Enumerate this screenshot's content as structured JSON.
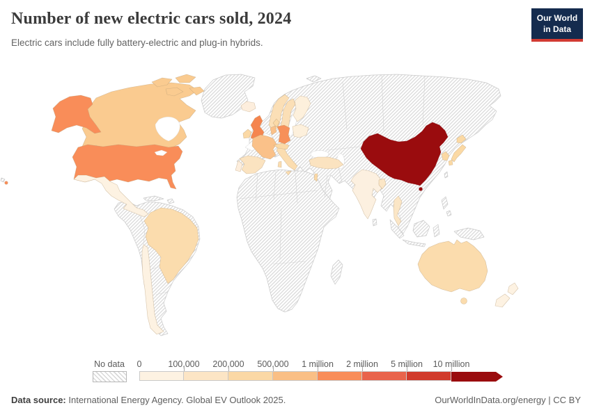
{
  "header": {
    "title": "Number of new electric cars sold, 2024",
    "subtitle": "Electric cars include fully battery-electric and plug-in hybrids.",
    "logo": {
      "line1": "Our World",
      "line2": "in Data",
      "bg": "#142b4e",
      "accent": "#d23b33"
    }
  },
  "legend": {
    "no_data_label": "No data",
    "tick_labels": [
      "0",
      "100,000",
      "200,000",
      "500,000",
      "1 million",
      "2 million",
      "5 million",
      "10 million"
    ],
    "bin_colors": [
      "#fdf2e2",
      "#fce5c5",
      "#fbd8a5",
      "#fabf85",
      "#f98d59",
      "#e9634b",
      "#d13a2b",
      "#9a0c0e"
    ]
  },
  "footer": {
    "source_label": "Data source:",
    "source_text": "International Energy Agency. Global EV Outlook 2025.",
    "rights": "OurWorldInData.org/energy | CC BY"
  },
  "map": {
    "no_data_pattern": "gray-diagonal-hatch",
    "border_color": "#c9c9c9",
    "colors": {
      "canada": "#facb90",
      "alaska": "#f98d59",
      "usa": "#f98d59",
      "hawaii": "#f98d59",
      "mexico": "#fdf2e2",
      "brazil": "#fbdcad",
      "chile": "#fdf2e2",
      "iceland": "#fdeedd",
      "uk": "#f5854f",
      "ireland": "#fbd9a6",
      "norway": "#fbdfb6",
      "sweden": "#fbdfb6",
      "finland": "#fdf0dc",
      "denmark": "#fbd9a6",
      "germany": "#f79059",
      "benelux": "#fac189",
      "france": "#fac189",
      "spain": "#fbe3c0",
      "portugal": "#fdeedd",
      "italy": "#fbddb0",
      "alpine": "#fbd9a6",
      "poland": "#fdf0dc",
      "turkey": "#fbe3c0",
      "israel": "#fbd9a6",
      "india": "#fcf0e0",
      "bangladesh": "#fbe6c6",
      "thailand": "#fbe6c6",
      "china": "#9a0c0e",
      "south_korea": "#fbd9a4",
      "japan": "#fbd9a4",
      "australia": "#fbdcad",
      "new_zealand": "#fdf2e2"
    }
  },
  "chart_data": {
    "type": "choropleth-map",
    "title": "Number of new electric cars sold, 2024",
    "subtitle": "Electric cars include fully battery-electric and plug-in hybrids.",
    "year": 2024,
    "unit": "new electric cars sold",
    "legend_bins": [
      {
        "range": "No data",
        "color": "hatched"
      },
      {
        "range": "0 – 100,000",
        "color": "#fdf2e2"
      },
      {
        "range": "100,000 – 200,000",
        "color": "#fce5c5"
      },
      {
        "range": "200,000 – 500,000",
        "color": "#fbd8a5"
      },
      {
        "range": "500,000 – 1 million",
        "color": "#fabf85"
      },
      {
        "range": "1 million – 2 million",
        "color": "#f98d59"
      },
      {
        "range": "2 million – 5 million",
        "color": "#e9634b"
      },
      {
        "range": "5 million – 10 million",
        "color": "#d13a2b"
      },
      {
        "range": "over 10 million",
        "color": "#9a0c0e"
      }
    ],
    "countries": [
      {
        "name": "China",
        "bin": "over 10 million",
        "color": "#9a0c0e"
      },
      {
        "name": "United States",
        "bin": "1 million – 2 million",
        "color": "#f98d59"
      },
      {
        "name": "United Kingdom",
        "bin": "500,000 – 1 million",
        "color": "#f5854f"
      },
      {
        "name": "Germany",
        "bin": "500,000 – 1 million",
        "color": "#f79059"
      },
      {
        "name": "France",
        "bin": "200,000 – 500,000",
        "color": "#fac189"
      },
      {
        "name": "Netherlands/Belgium",
        "bin": "200,000 – 500,000",
        "color": "#fac189"
      },
      {
        "name": "Canada",
        "bin": "200,000 – 500,000",
        "color": "#facb90"
      },
      {
        "name": "Norway",
        "bin": "100,000 – 200,000",
        "color": "#fbdfb6"
      },
      {
        "name": "Sweden",
        "bin": "100,000 – 200,000",
        "color": "#fbdfb6"
      },
      {
        "name": "Denmark",
        "bin": "100,000 – 200,000",
        "color": "#fbd9a6"
      },
      {
        "name": "Ireland",
        "bin": "100,000 – 200,000",
        "color": "#fbd9a6"
      },
      {
        "name": "Finland",
        "bin": "0 – 100,000",
        "color": "#fdf0dc"
      },
      {
        "name": "Iceland",
        "bin": "0 – 100,000",
        "color": "#fdeedd"
      },
      {
        "name": "Poland",
        "bin": "0 – 100,000",
        "color": "#fdf0dc"
      },
      {
        "name": "Portugal",
        "bin": "0 – 100,000",
        "color": "#fdeedd"
      },
      {
        "name": "Spain",
        "bin": "100,000 – 200,000",
        "color": "#fbe3c0"
      },
      {
        "name": "Italy",
        "bin": "100,000 – 200,000",
        "color": "#fbddb0"
      },
      {
        "name": "Switzerland/Austria",
        "bin": "100,000 – 200,000",
        "color": "#fbd9a6"
      },
      {
        "name": "Turkey",
        "bin": "100,000 – 200,000",
        "color": "#fbe3c0"
      },
      {
        "name": "Israel",
        "bin": "100,000 – 200,000",
        "color": "#fbd9a6"
      },
      {
        "name": "India",
        "bin": "0 – 100,000",
        "color": "#fcf0e0"
      },
      {
        "name": "Bangladesh",
        "bin": "0 – 100,000",
        "color": "#fbe6c6"
      },
      {
        "name": "Thailand",
        "bin": "0 – 100,000",
        "color": "#fbe6c6"
      },
      {
        "name": "South Korea",
        "bin": "100,000 – 200,000",
        "color": "#fbd9a4"
      },
      {
        "name": "Japan",
        "bin": "100,000 – 200,000",
        "color": "#fbd9a4"
      },
      {
        "name": "Mexico",
        "bin": "0 – 100,000",
        "color": "#fdf2e2"
      },
      {
        "name": "Brazil",
        "bin": "100,000 – 200,000",
        "color": "#fbdcad"
      },
      {
        "name": "Chile",
        "bin": "0 – 100,000",
        "color": "#fdf2e2"
      },
      {
        "name": "Australia",
        "bin": "100,000 – 200,000",
        "color": "#fbdcad"
      },
      {
        "name": "New Zealand",
        "bin": "0 – 100,000",
        "color": "#fdf2e2"
      }
    ],
    "no_data_regions": [
      "Russia",
      "Greenland",
      "Africa",
      "Middle East (most)",
      "Central Asia",
      "Mongolia",
      "Pakistan",
      "Southeast Asia (most)",
      "most of South America",
      "Eastern Europe (parts)"
    ]
  }
}
